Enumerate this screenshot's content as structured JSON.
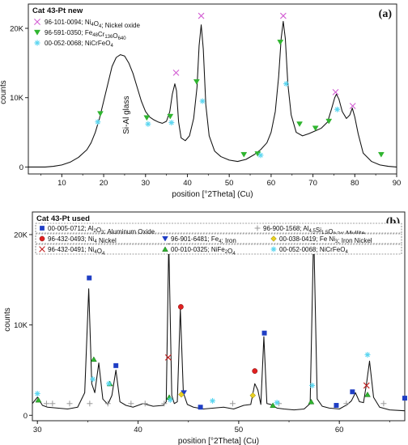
{
  "chart_data": [
    {
      "type": "line",
      "panel_label": "(a)",
      "title": "Cat 43-Pt new",
      "xlabel": "position [°2Theta] (Cu)",
      "ylabel": "counts",
      "xlim": [
        2,
        90
      ],
      "ylim": [
        -1000,
        23500
      ],
      "x_ticks": [
        "10",
        "20",
        "30",
        "40",
        "50",
        "60",
        "70",
        "80",
        "90"
      ],
      "x_tick_values": [
        10,
        20,
        30,
        40,
        50,
        60,
        70,
        80,
        90
      ],
      "y_ticks": [
        "0",
        "10K",
        "20K"
      ],
      "y_tick_values": [
        0,
        10000,
        20000
      ],
      "legend_position": "top-left",
      "annotation": "Si-Al glass",
      "annotation_at": [
        26,
        7500
      ],
      "series": [
        {
          "x": [
            2,
            4,
            6,
            8,
            10,
            12,
            14,
            16,
            17,
            18,
            19,
            20,
            21,
            22,
            23,
            24,
            25,
            26,
            27,
            28,
            29,
            30,
            31,
            32,
            33,
            34,
            35,
            35.8,
            36.4,
            37,
            37.4,
            37.9,
            38.5,
            39.5,
            40.5,
            41.5,
            42.3,
            42.8,
            43.3,
            43.8,
            44.4,
            45.2,
            46.5,
            48,
            50,
            52,
            54,
            56,
            57.5,
            59,
            60,
            61,
            61.8,
            62.4,
            62.9,
            63.4,
            64,
            64.8,
            66,
            67.5,
            69,
            70.5,
            72,
            73.5,
            74.5,
            75.2,
            75.6,
            76.2,
            77,
            78,
            78.8,
            79.4,
            80,
            80.8,
            82,
            84,
            86,
            88,
            90
          ],
          "y": [
            0,
            0,
            0,
            100,
            300,
            700,
            1400,
            2500,
            3500,
            5000,
            7000,
            9500,
            12000,
            14500,
            15800,
            16200,
            16000,
            15000,
            13500,
            11500,
            9500,
            8000,
            7200,
            6800,
            6500,
            6300,
            6600,
            8000,
            10500,
            12000,
            11000,
            6500,
            4200,
            3800,
            4500,
            7000,
            11500,
            17500,
            20500,
            17000,
            9000,
            4500,
            2300,
            1500,
            1000,
            800,
            1100,
            1800,
            2500,
            3500,
            5000,
            8000,
            13000,
            18500,
            21000,
            18500,
            12000,
            7500,
            5000,
            4500,
            4800,
            5200,
            5600,
            6500,
            8500,
            10000,
            10500,
            9800,
            8000,
            7000,
            7500,
            8500,
            7200,
            4800,
            2000,
            800,
            300,
            100,
            0
          ]
        }
      ],
      "legend": [
        {
          "marker": "cross",
          "color": "#d35fd3",
          "text": "96-101-0094; Ni4O4; Nickel oxide"
        },
        {
          "marker": "triangle-down",
          "color": "#2fb52f",
          "text": "96-591-0350; Fe48Cr136O640"
        },
        {
          "marker": "star",
          "color": "#5cd6f0",
          "text": "00-052-0068; NiCrFeO4"
        }
      ],
      "reference_peaks": [
        {
          "marker": "cross",
          "color": "#d35fd3",
          "x": [
            37.3,
            43.3,
            62.9,
            75.4,
            79.5
          ],
          "y": [
            13600,
            21800,
            21800,
            10800,
            8800
          ]
        },
        {
          "marker": "triangle-down",
          "color": "#2fb52f",
          "x": [
            19.2,
            30.3,
            35.9,
            42.2,
            53.5,
            56.8,
            62.2,
            66.8,
            70.6,
            73.8,
            86.3
          ],
          "y": [
            7700,
            7100,
            7300,
            12300,
            1800,
            1900,
            18000,
            6200,
            5600,
            6600,
            1800
          ]
        },
        {
          "marker": "star",
          "color": "#5cd6f0",
          "x": [
            18.6,
            30.6,
            36.2,
            43.6,
            57.5,
            63.6,
            75.8
          ],
          "y": [
            6500,
            6200,
            6400,
            9500,
            1700,
            12000,
            8300
          ]
        }
      ]
    },
    {
      "type": "line",
      "panel_label": "(b)",
      "title": "Cat 43-Pt used",
      "xlabel": "position [°2Theta] (Cu)",
      "ylabel": "counts",
      "xlim": [
        29.5,
        66.5
      ],
      "ylim": [
        -600,
        22500
      ],
      "x_ticks": [
        "30",
        "40",
        "50",
        "60"
      ],
      "x_tick_values": [
        30,
        40,
        50,
        60
      ],
      "y_ticks": [
        "0",
        "10K",
        "20K"
      ],
      "y_tick_values": [
        0,
        10000,
        20000
      ],
      "legend_position": "top",
      "series": [
        {
          "x": [
            29.5,
            30,
            30.5,
            31,
            32,
            33,
            34,
            34.7,
            35.1,
            35.4,
            35.7,
            36.1,
            36.5,
            37,
            37.4,
            37.8,
            38.2,
            38.8,
            39.5,
            40.5,
            41.5,
            42.5,
            42.8,
            43.05,
            43.35,
            43.6,
            43.9,
            44.2,
            44.5,
            44.9,
            45.5,
            46.5,
            47.5,
            48.5,
            49.5,
            50.5,
            51.2,
            51.6,
            51.9,
            52.2,
            52.5,
            52.8,
            53.2,
            53.8,
            54.5,
            55.5,
            56.5,
            57.1,
            57.45,
            57.8,
            58.3,
            59,
            60,
            60.8,
            61.2,
            61.6,
            62,
            62.4,
            62.7,
            63,
            63.4,
            64,
            65,
            66.5
          ],
          "y": [
            1300,
            2000,
            1100,
            900,
            800,
            700,
            900,
            2500,
            14000,
            3500,
            2500,
            5800,
            1800,
            1200,
            2200,
            5000,
            1500,
            1100,
            900,
            1300,
            1000,
            1100,
            1500,
            19300,
            2200,
            1300,
            1500,
            11800,
            2500,
            1200,
            900,
            700,
            800,
            900,
            700,
            1100,
            1200,
            3500,
            2800,
            1200,
            8700,
            1300,
            1200,
            800,
            700,
            600,
            700,
            1300,
            20500,
            1800,
            1000,
            800,
            700,
            1200,
            1600,
            2500,
            1500,
            1400,
            3500,
            6000,
            2000,
            900,
            600,
            500
          ]
        }
      ],
      "legend": [
        {
          "marker": "square",
          "color": "#1f3ec4",
          "text": "00-005-0712; Al2O3; Aluminum Oxide"
        },
        {
          "marker": "plus",
          "color": "#999999",
          "text": "96-900-1568; Al4.5Si1.5O9.74; Mullite"
        },
        {
          "marker": "circle",
          "color": "#e02020",
          "text": "96-432-0493; Ni4 Nickel"
        },
        {
          "marker": "triangle-down",
          "color": "#1f3ec4",
          "text": "96-901-6481; Fe4; Iron"
        },
        {
          "marker": "diamond",
          "color": "#e8d020",
          "text": "00-038-0419; Fe Ni3; Iron Nickel"
        },
        {
          "marker": "cross",
          "color": "#c02020",
          "text": "96-432-0491; Ni4O4"
        },
        {
          "marker": "triangle-up",
          "color": "#2fb52f",
          "text": "00-010-0325; NiFe2O4"
        },
        {
          "marker": "star",
          "color": "#5cd6f0",
          "text": "00-052-0068; NiCrFeO4"
        }
      ],
      "reference_peaks": [
        {
          "marker": "square",
          "color": "#1f3ec4",
          "x": [
            35.15,
            37.8,
            43.35,
            46.2,
            52.55,
            57.5,
            59.7,
            61.3,
            66.5
          ],
          "y": [
            15200,
            5500,
            19500,
            900,
            9100,
            20600,
            1100,
            2600,
            1900
          ]
        },
        {
          "marker": "plus",
          "color": "#999999",
          "x": [
            30.9,
            31.5,
            33.2,
            35.2,
            37.0,
            39.3,
            40.7,
            42.6,
            49.4,
            54.0,
            60.7,
            64.4
          ],
          "y": [
            1300,
            1300,
            1300,
            1300,
            1300,
            1300,
            1300,
            1300,
            1300,
            1300,
            1300,
            1300
          ]
        },
        {
          "marker": "circle",
          "color": "#e02020",
          "x": [
            44.25,
            51.6
          ],
          "y": [
            12000,
            4900
          ]
        },
        {
          "marker": "triangle-down",
          "color": "#1f3ec4",
          "x": [
            44.55
          ],
          "y": [
            2500
          ]
        },
        {
          "marker": "diamond",
          "color": "#e8d020",
          "x": [
            44.3,
            51.4
          ],
          "y": [
            2300,
            2200
          ]
        },
        {
          "marker": "cross",
          "color": "#c02020",
          "x": [
            43.0,
            62.7
          ],
          "y": [
            6400,
            3300
          ]
        },
        {
          "marker": "triangle-up",
          "color": "#2fb52f",
          "x": [
            30.1,
            35.6,
            37.2,
            43.1,
            53.4,
            57.2,
            62.8
          ],
          "y": [
            1700,
            6200,
            3500,
            2000,
            1100,
            1500,
            2300
          ]
        },
        {
          "marker": "star",
          "color": "#5cd6f0",
          "x": [
            30.0,
            35.5,
            37.1,
            43.2,
            47.4,
            53.8,
            57.3,
            62.8
          ],
          "y": [
            2400,
            4000,
            3500,
            1700,
            1600,
            1400,
            3300,
            6700
          ]
        }
      ]
    }
  ]
}
